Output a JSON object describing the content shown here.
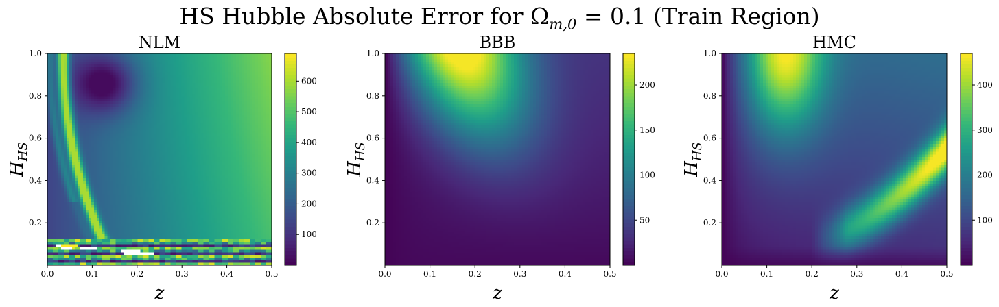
{
  "figure": {
    "title": "HS Hubble Absolute Error for Ω",
    "title_subscript": "m,0",
    "title_tail": " = 0.1 (Train Region)"
  },
  "chart_data": [
    {
      "type": "heatmap",
      "title": "NLM",
      "xlabel": "z",
      "ylabel_main": "H",
      "ylabel_sub": "HS",
      "xlim": [
        0.0,
        0.5
      ],
      "ylim": [
        0.0,
        1.0
      ],
      "xticks": [
        "0.0",
        "0.1",
        "0.2",
        "0.3",
        "0.4",
        "0.5"
      ],
      "yticks": [
        "0.2",
        "0.4",
        "0.6",
        "0.8",
        "1.0"
      ],
      "grid": false,
      "colormap": "viridis",
      "colorbar": {
        "min": 0,
        "max": 690,
        "ticks": [
          "100",
          "200",
          "300",
          "400",
          "500",
          "600"
        ],
        "tick_values": [
          100,
          200,
          300,
          400,
          500,
          600
        ]
      },
      "features": {
        "background": "error increases with z from about 150 at low z to about 520 at z=0.5, low region (~0-50) near z=0.12, H=0.85",
        "bright_curve": "narrow band of ~500-650 from (z=0.05,H=1.0) curving down to (z=0.15,H=0.15)",
        "low_H_band": "noisy high/low values with missing (white) cells for H below 0.12"
      }
    },
    {
      "type": "heatmap",
      "title": "BBB",
      "xlabel": "z",
      "ylabel_main": "H",
      "ylabel_sub": "HS",
      "xlim": [
        0.0,
        0.5
      ],
      "ylim": [
        0.0,
        1.0
      ],
      "xticks": [
        "0.0",
        "0.1",
        "0.2",
        "0.3",
        "0.4",
        "0.5"
      ],
      "yticks": [
        "0.2",
        "0.4",
        "0.6",
        "0.8",
        "1.0"
      ],
      "grid": false,
      "colormap": "viridis",
      "colorbar": {
        "min": 0,
        "max": 235,
        "ticks": [
          "50",
          "100",
          "150",
          "200"
        ],
        "tick_values": [
          50,
          100,
          150,
          200
        ]
      },
      "features": {
        "peak": "maximum ~230 near z=0.17, H=0.97, extending as a ridge toward z=0.27, H=0.65",
        "low": "near 0 at small H and at z=0"
      }
    },
    {
      "type": "heatmap",
      "title": "HMC",
      "xlabel": "z",
      "ylabel_main": "H",
      "ylabel_sub": "HS",
      "xlim": [
        0.0,
        0.5
      ],
      "ylim": [
        0.0,
        1.0
      ],
      "xticks": [
        "0.0",
        "0.1",
        "0.2",
        "0.3",
        "0.4",
        "0.5"
      ],
      "yticks": [
        "0.2",
        "0.4",
        "0.6",
        "0.8",
        "1.0"
      ],
      "grid": false,
      "colormap": "viridis",
      "colorbar": {
        "min": 0,
        "max": 470,
        "ticks": [
          "100",
          "200",
          "300",
          "400"
        ],
        "tick_values": [
          100,
          200,
          300,
          400
        ]
      },
      "features": {
        "peak": "maximum ~460 near z=0.14, H=0.97",
        "secondary": "curved band ~350-420 from z=0.23, H=0.12 rising to z=0.5, H=0.55",
        "low": "near 0 at small H and at z=0"
      }
    }
  ]
}
